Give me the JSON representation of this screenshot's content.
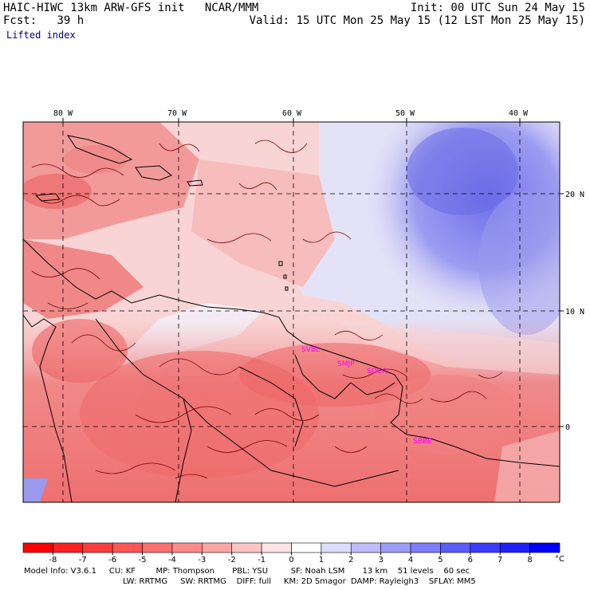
{
  "header": {
    "title": "HAIC-HIWC 13km ARW-GFS init",
    "org": "NCAR/MMM",
    "init": "Init: 00 UTC Sun 24 May 15",
    "fcst_label": "Fcst:",
    "fcst_value": "39 h",
    "valid": "Valid: 15 UTC Mon 25 May 15 (12 LST Mon 25 May 15)",
    "field": "Lifted index"
  },
  "map": {
    "lon_labels": [
      "80 W",
      "70 W",
      "60 W",
      "50 W",
      "40 W"
    ],
    "lat_labels": [
      "20 N",
      "10 N",
      "0"
    ],
    "stations": [
      "SVBL",
      "SMJP",
      "SOCA",
      "SBBE"
    ],
    "station_color": "#ff00ff"
  },
  "colorbar": {
    "ticks": [
      "-8",
      "-7",
      "-6",
      "-5",
      "-4",
      "-3",
      "-2",
      "-1",
      "0",
      "1",
      "2",
      "3",
      "4",
      "5",
      "6",
      "7",
      "8"
    ],
    "unit": "°C",
    "colors": [
      "#ff0000",
      "#ff2020",
      "#ff3c3c",
      "#ff5555",
      "#ff7070",
      "#ff8a8a",
      "#ffa5a5",
      "#ffc4c4",
      "#ffe3e3",
      "#ffffff",
      "#dcdcff",
      "#bcbcff",
      "#9c9cff",
      "#7c7cff",
      "#5c5cff",
      "#3c3cff",
      "#2020ff",
      "#0000ff"
    ]
  },
  "footer": {
    "line1": [
      "Model Info: V3.6.1",
      "CU: KF",
      "MP: Thompson",
      "PBL: YSU",
      "SF: Noah LSM",
      "13 km",
      "51 levels",
      "60 sec"
    ],
    "line2": [
      "LW: RRTMG",
      "SW: RRTMG",
      "DIFF: full",
      "KM: 2D Smagor",
      "DAMP: Rayleigh3",
      "SFLAY: MM5"
    ]
  }
}
